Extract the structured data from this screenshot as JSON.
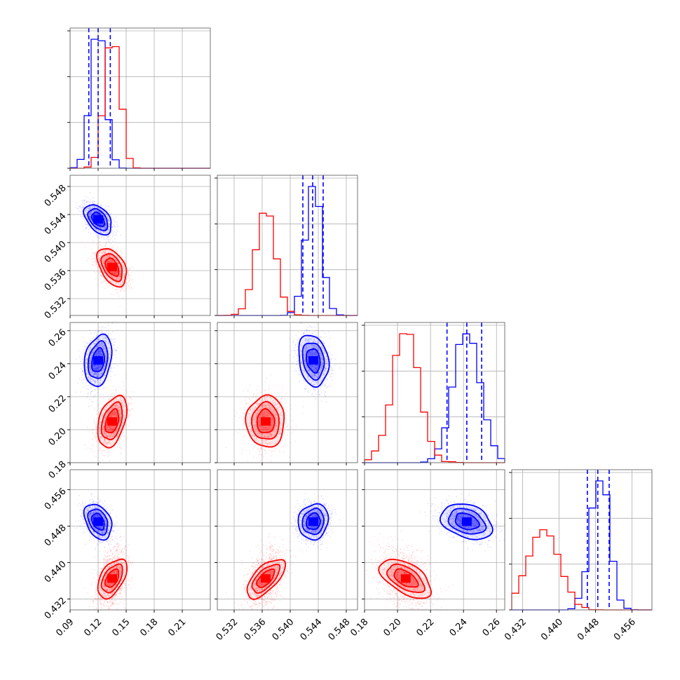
{
  "chart_data": {
    "type": "corner",
    "colors": {
      "series_a": "#0000ff",
      "series_b": "#ff0000"
    },
    "grid": true,
    "parameters": [
      {
        "range": [
          0.09,
          0.24
        ],
        "ticks": [
          0.09,
          0.12,
          0.15,
          0.18,
          0.21
        ],
        "tick_labels": [
          "0.09",
          "0.12",
          "0.15",
          "0.18",
          "0.21"
        ]
      },
      {
        "range": [
          0.5296,
          0.5496
        ],
        "ticks": [
          0.532,
          0.536,
          0.54,
          0.544,
          0.548
        ],
        "tick_labels": [
          "0.532",
          "0.536",
          "0.540",
          "0.544",
          "0.548"
        ]
      },
      {
        "range": [
          0.18,
          0.265
        ],
        "ticks": [
          0.18,
          0.2,
          0.22,
          0.24,
          0.26
        ],
        "tick_labels": [
          "0.18",
          "0.20",
          "0.22",
          "0.24",
          "0.26"
        ]
      },
      {
        "range": [
          0.4296,
          0.4604
        ],
        "ticks": [
          0.432,
          0.44,
          0.448,
          0.456
        ],
        "tick_labels": [
          "0.432",
          "0.440",
          "0.448",
          "0.456"
        ]
      }
    ],
    "series": [
      {
        "color_key": "series_a",
        "means": [
          0.12,
          0.5433,
          0.242,
          0.449
        ],
        "stds": [
          0.0075,
          0.0011,
          0.008,
          0.002
        ],
        "correlations": [
          [
            1,
            -0.45,
            0.25,
            -0.35
          ],
          [
            -0.45,
            1,
            -0.2,
            0.1
          ],
          [
            0.25,
            -0.2,
            1,
            -0.3
          ],
          [
            -0.35,
            0.1,
            -0.3,
            1
          ]
        ],
        "quantiles": [
          [
            0.11,
            0.12,
            0.133
          ],
          [
            0.5418,
            0.5432,
            0.5447
          ],
          [
            0.23,
            0.242,
            0.251
          ],
          [
            0.4462,
            0.4485,
            0.451
          ]
        ]
      },
      {
        "color_key": "series_b",
        "means": [
          0.135,
          0.5365,
          0.205,
          0.4365
        ],
        "stds": [
          0.008,
          0.0014,
          0.008,
          0.0022
        ],
        "correlations": [
          [
            1,
            -0.45,
            0.4,
            0.5
          ],
          [
            -0.45,
            1,
            0.0,
            0.65
          ],
          [
            0.4,
            0.0,
            1,
            -0.55
          ],
          [
            0.5,
            0.65,
            -0.55,
            1
          ]
        ]
      }
    ]
  }
}
